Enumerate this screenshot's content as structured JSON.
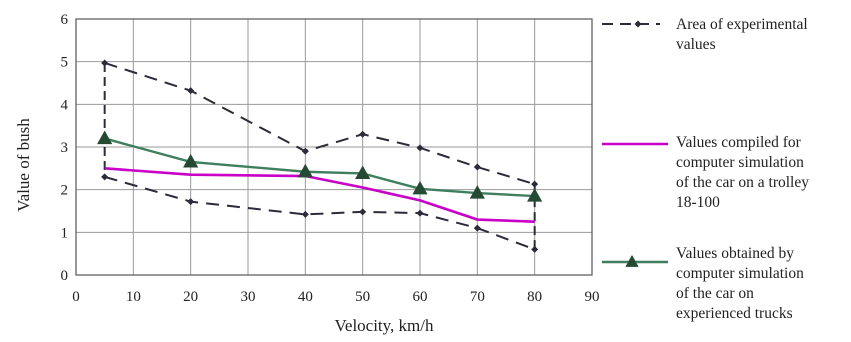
{
  "chart_data": {
    "type": "line",
    "xlabel": "Velocity, km/h",
    "ylabel": "Value of bush",
    "xlim": [
      0,
      90
    ],
    "ylim": [
      0,
      6
    ],
    "xticks": [
      0,
      10,
      20,
      30,
      40,
      50,
      60,
      70,
      80,
      90
    ],
    "yticks": [
      0,
      1,
      2,
      3,
      4,
      5,
      6
    ],
    "grid": true,
    "legend_position": "right",
    "series": [
      {
        "name": "Area of experimental values",
        "legend_lines": [
          "Area of experimental",
          "values"
        ],
        "style": "dashed",
        "marker": "diamond",
        "color": "#2b2b3a",
        "upper": {
          "x": [
            5,
            20,
            40,
            50,
            60,
            70,
            80
          ],
          "y": [
            4.97,
            4.32,
            2.9,
            3.3,
            2.98,
            2.53,
            2.13
          ]
        },
        "lower": {
          "x": [
            5,
            20,
            40,
            50,
            60,
            70,
            80
          ],
          "y": [
            2.3,
            1.72,
            1.42,
            1.48,
            1.45,
            1.1,
            0.6
          ]
        }
      },
      {
        "name": "Values compiled for computer simulation of the car on a trolley 18-100",
        "legend_lines": [
          "Values compiled for",
          "computer simulation",
          "of the car on a trolley",
          "18-100"
        ],
        "style": "solid",
        "marker": "none",
        "color": "#c800c8",
        "x": [
          5,
          20,
          40,
          50,
          60,
          70,
          80
        ],
        "y": [
          2.5,
          2.35,
          2.32,
          2.05,
          1.75,
          1.3,
          1.25
        ]
      },
      {
        "name": "Values obtained by computer simulation of the car on experienced trucks",
        "legend_lines": [
          "Values obtained by",
          "computer simulation",
          "of the car on",
          "experienced trucks"
        ],
        "style": "solid",
        "marker": "triangle",
        "color": "#3f7f5e",
        "marker_color": "#244a34",
        "x": [
          5,
          20,
          40,
          50,
          60,
          70,
          80
        ],
        "y": [
          3.2,
          2.65,
          2.42,
          2.38,
          2.02,
          1.92,
          1.85
        ]
      }
    ]
  }
}
